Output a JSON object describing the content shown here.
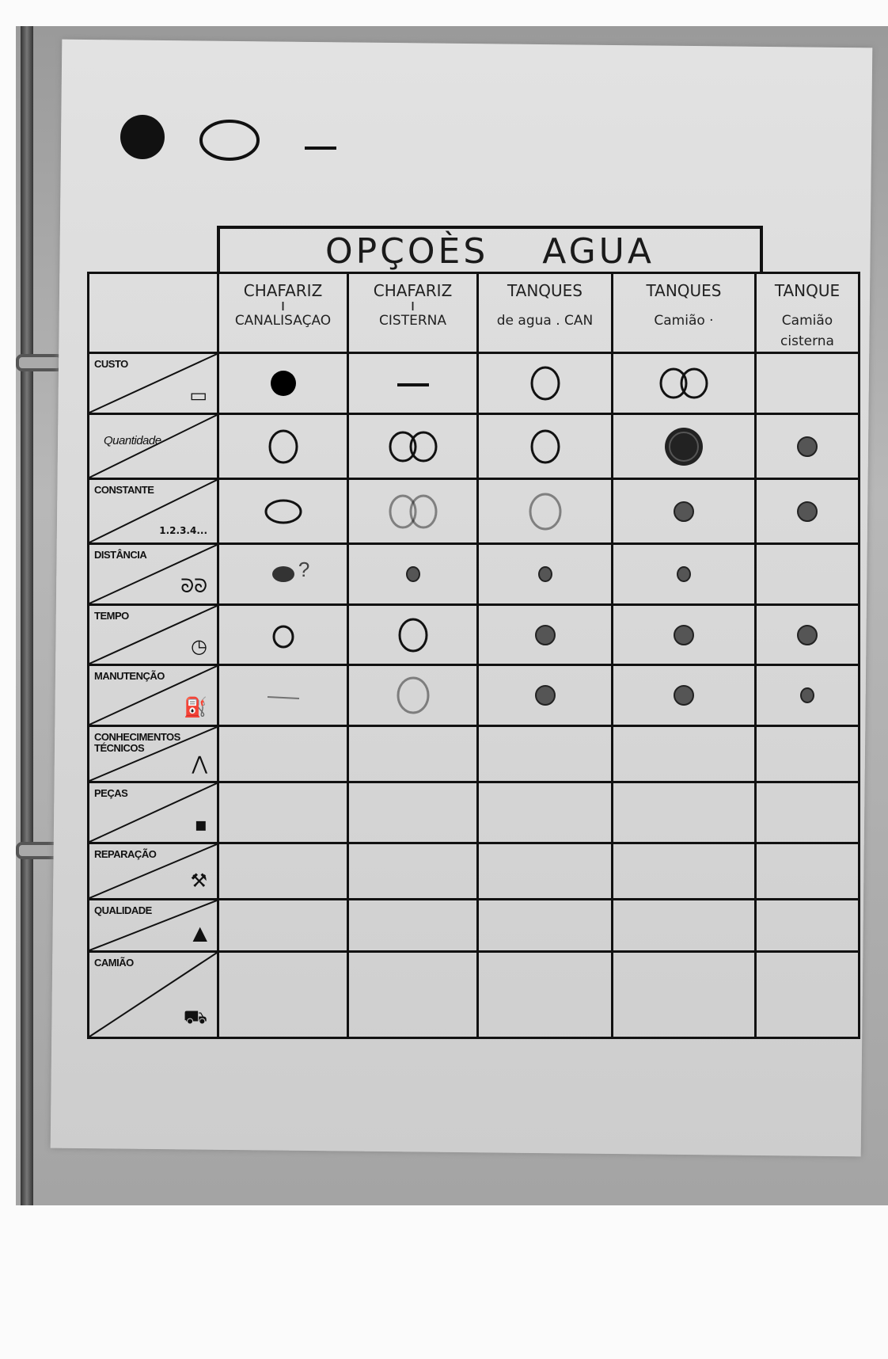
{
  "legend": [
    {
      "mark": "filled"
    },
    {
      "mark": "open"
    },
    {
      "mark": "dash"
    }
  ],
  "title": "OPÇOÈS   AGUA",
  "columns": [
    {
      "line1": "CHAFARIZ",
      "sep": "ı",
      "line2": "CANALISAÇAO"
    },
    {
      "line1": "CHAFARIZ",
      "sep": "ı",
      "line2": "CISTERNA"
    },
    {
      "line1": "TANQUES",
      "sep": "",
      "line2": "de agua . CAN"
    },
    {
      "line1": "TANQUES",
      "sep": "",
      "line2": "Camião ·"
    },
    {
      "line1": "TANQUE",
      "sep": "",
      "line2": "Camião cisterna"
    }
  ],
  "rows": [
    {
      "label": "CUSTO",
      "icon": "banknote-icon",
      "marks": [
        "filled",
        "dash",
        "open",
        "double-open",
        "none"
      ]
    },
    {
      "label": "Quantidade",
      "icon": "",
      "marks": [
        "open",
        "double-open",
        "open",
        "scribble-big",
        "shaded-small"
      ]
    },
    {
      "label": "CONSTANTE",
      "sub": "1.2.3.4...",
      "icon": "",
      "marks": [
        "open-wide",
        "double-open-faint",
        "open-faint",
        "shaded-small",
        "shaded-small"
      ]
    },
    {
      "label": "DISTÂNCIA",
      "icon": "footprints-icon",
      "marks": [
        "shaded",
        "dot",
        "dot",
        "dot",
        "none"
      ],
      "note": "?"
    },
    {
      "label": "TEMPO",
      "icon": "clock-icon",
      "marks": [
        "open-small",
        "open",
        "shaded-small",
        "shaded-small",
        "shaded-small"
      ]
    },
    {
      "label": "MANUTENÇÃO",
      "icon": "oil-can-icon",
      "marks": [
        "dash-faint",
        "open-faint",
        "shaded-small",
        "shaded-small",
        "dot"
      ]
    },
    {
      "label": "CONHECIMENTOS TÉCNICOS",
      "icon": "tripod-icon",
      "marks": [
        "none",
        "none",
        "none",
        "none",
        "none"
      ]
    },
    {
      "label": "PEÇAS",
      "icon": "bolt-icon",
      "marks": [
        "none",
        "none",
        "none",
        "none",
        "none"
      ]
    },
    {
      "label": "REPARAÇÃO",
      "icon": "wrench-icon",
      "marks": [
        "none",
        "none",
        "none",
        "none",
        "none"
      ]
    },
    {
      "label": "QUALIDADE",
      "icon": "triangle-icon",
      "marks": [
        "none",
        "none",
        "none",
        "none",
        "none"
      ]
    },
    {
      "label": "CAMIÃO",
      "icon": "truck-icon",
      "marks": [
        "none",
        "none",
        "none",
        "none",
        "none"
      ]
    }
  ],
  "icons": {
    "banknote-icon": "▭",
    "footprints-icon": "ᘐᘐ",
    "clock-icon": "◷",
    "oil-can-icon": "⛽",
    "tripod-icon": "⋀",
    "bolt-icon": "▪",
    "wrench-icon": "⚒",
    "triangle-icon": "▲",
    "truck-icon": "⛟"
  }
}
